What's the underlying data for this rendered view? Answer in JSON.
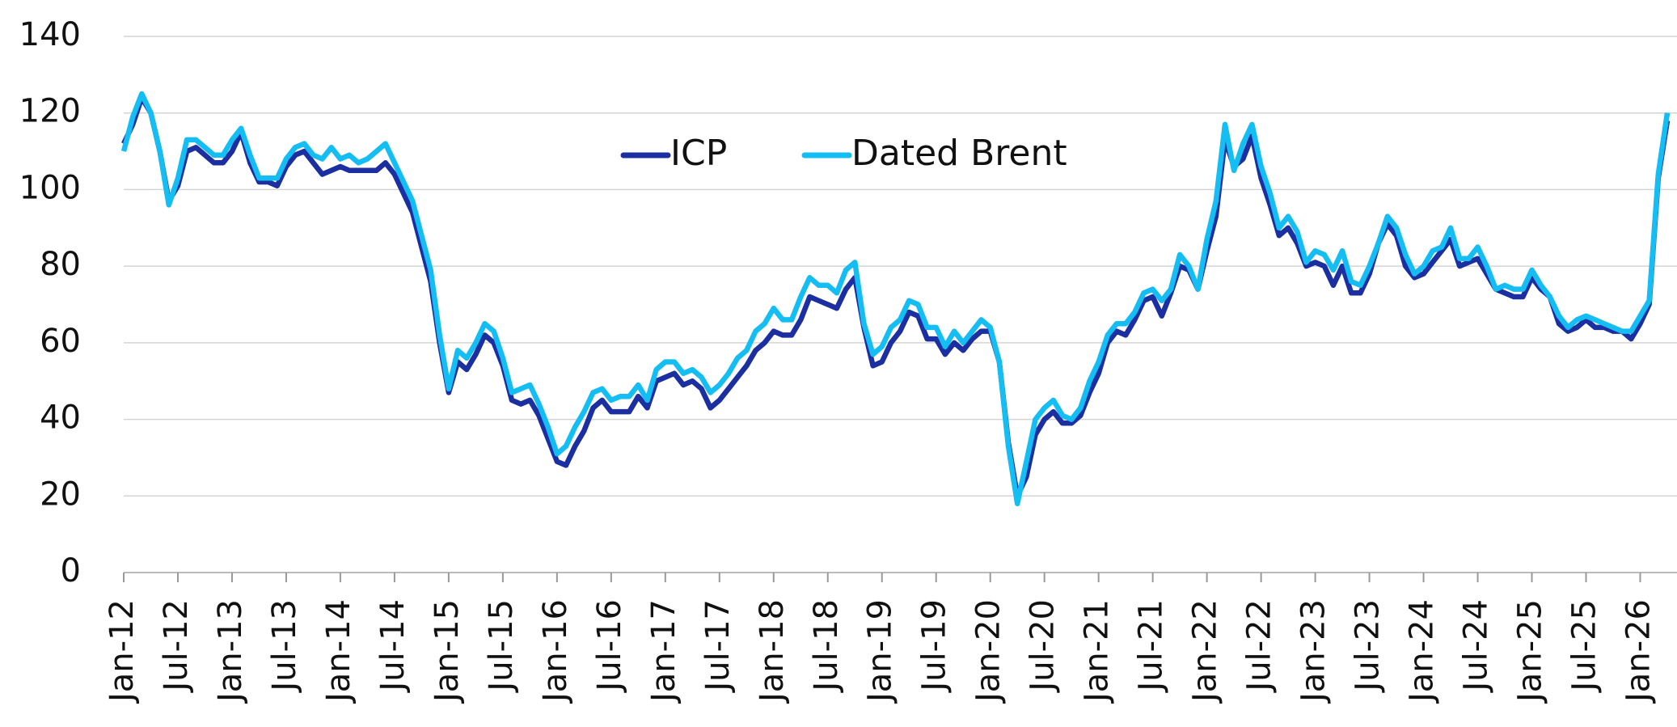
{
  "chart_data": {
    "type": "line",
    "categories": [
      "Jan-12",
      null,
      null,
      null,
      null,
      null,
      "Jul-12",
      null,
      null,
      null,
      null,
      null,
      "Jan-13",
      null,
      null,
      null,
      null,
      null,
      "Jul-13",
      null,
      null,
      null,
      null,
      null,
      "Jan-14",
      null,
      null,
      null,
      null,
      null,
      "Jul-14",
      null,
      null,
      null,
      null,
      null,
      "Jan-15",
      null,
      null,
      null,
      null,
      null,
      "Jul-15",
      null,
      null,
      null,
      null,
      null,
      "Jan-16",
      null,
      null,
      null,
      null,
      null,
      "Jul-16",
      null,
      null,
      null,
      null,
      null,
      "Jan-17",
      null,
      null,
      null,
      null,
      null,
      "Jul-17",
      null,
      null,
      null,
      null,
      null,
      "Jan-18",
      null,
      null,
      null,
      null,
      null,
      "Jul-18",
      null,
      null,
      null,
      null,
      null,
      "Jan-19",
      null,
      null,
      null,
      null,
      null,
      "Jul-19",
      null,
      null,
      null,
      null,
      null,
      "Jan-20",
      null,
      null,
      null,
      null,
      null,
      "Jul-20",
      null,
      null,
      null,
      null,
      null,
      "Jan-21",
      null,
      null,
      null,
      null,
      null,
      "Jul-21",
      null,
      null,
      null,
      null,
      null,
      "Jan-22",
      null,
      null,
      null,
      null,
      null,
      "Jul-22",
      null,
      null,
      null,
      null,
      null,
      "Jan-23",
      null,
      null,
      null,
      null,
      null,
      "Jul-23",
      null,
      null,
      null,
      null,
      null,
      "Jan-24",
      null,
      null,
      null,
      null,
      null,
      "Jul-24",
      null,
      null,
      null,
      null,
      null,
      "Jan-25",
      null,
      null,
      null,
      null,
      null,
      "Jul-25",
      null,
      null,
      null,
      null,
      null,
      "Jan-26",
      null,
      null,
      null
    ],
    "series": [
      {
        "name": "ICP",
        "color": "#1c2fa0",
        "values": [
          112,
          117,
          124,
          120,
          110,
          97,
          101,
          110,
          111,
          109,
          107,
          107,
          110,
          115,
          107,
          102,
          102,
          101,
          106,
          109,
          110,
          107,
          104,
          105,
          106,
          105,
          105,
          105,
          105,
          107,
          104,
          99,
          94,
          85,
          76,
          60,
          47,
          55,
          53,
          57,
          62,
          60,
          54,
          45,
          44,
          45,
          41,
          35,
          29,
          28,
          33,
          37,
          43,
          45,
          42,
          42,
          42,
          46,
          43,
          50,
          51,
          52,
          49,
          50,
          48,
          43,
          45,
          48,
          51,
          54,
          58,
          60,
          63,
          62,
          62,
          66,
          72,
          71,
          70,
          69,
          74,
          77,
          64,
          54,
          55,
          60,
          63,
          68,
          67,
          61,
          61,
          57,
          60,
          58,
          61,
          63,
          63,
          55,
          34,
          20,
          25,
          36,
          40,
          42,
          39,
          39,
          41,
          47,
          52,
          60,
          63,
          62,
          66,
          71,
          72,
          67,
          73,
          80,
          79,
          74,
          84,
          93,
          113,
          106,
          108,
          114,
          103,
          96,
          88,
          90,
          86,
          80,
          81,
          80,
          75,
          80,
          73,
          73,
          78,
          86,
          91,
          88,
          80,
          77,
          78,
          81,
          84,
          87,
          80,
          81,
          82,
          78,
          74,
          73,
          72,
          72,
          77,
          74,
          72,
          65,
          63,
          64,
          66,
          64,
          64,
          63,
          63,
          61,
          65,
          70,
          103,
          118
        ]
      },
      {
        "name": "Dated Brent",
        "color": "#14bdf2",
        "values": [
          110,
          119,
          125,
          120,
          110,
          96,
          103,
          113,
          113,
          111,
          109,
          109,
          113,
          116,
          109,
          103,
          103,
          103,
          108,
          111,
          112,
          109,
          108,
          111,
          108,
          109,
          107,
          108,
          110,
          112,
          107,
          102,
          97,
          88,
          79,
          62,
          48,
          58,
          56,
          60,
          65,
          63,
          56,
          47,
          48,
          49,
          44,
          38,
          31,
          33,
          38,
          42,
          47,
          48,
          45,
          46,
          46,
          49,
          45,
          53,
          55,
          55,
          52,
          53,
          51,
          47,
          49,
          52,
          56,
          58,
          63,
          65,
          69,
          66,
          66,
          72,
          77,
          75,
          75,
          73,
          79,
          81,
          65,
          57,
          59,
          64,
          66,
          71,
          70,
          64,
          64,
          59,
          63,
          60,
          63,
          66,
          64,
          55,
          33,
          18,
          29,
          40,
          43,
          45,
          41,
          40,
          43,
          50,
          55,
          62,
          65,
          65,
          68,
          73,
          74,
          71,
          74,
          83,
          80,
          74,
          87,
          97,
          117,
          105,
          112,
          117,
          106,
          99,
          90,
          93,
          89,
          81,
          84,
          83,
          79,
          84,
          76,
          75,
          80,
          86,
          93,
          90,
          83,
          78,
          80,
          84,
          85,
          90,
          82,
          82,
          85,
          80,
          74,
          75,
          74,
          74,
          79,
          75,
          72,
          67,
          64,
          66,
          67,
          66,
          65,
          64,
          63,
          63,
          67,
          71,
          104,
          120
        ]
      }
    ],
    "ylim": [
      0,
      140
    ],
    "yticks": [
      0,
      20,
      40,
      60,
      80,
      100,
      120,
      140
    ],
    "grid": true,
    "legend": "top"
  }
}
